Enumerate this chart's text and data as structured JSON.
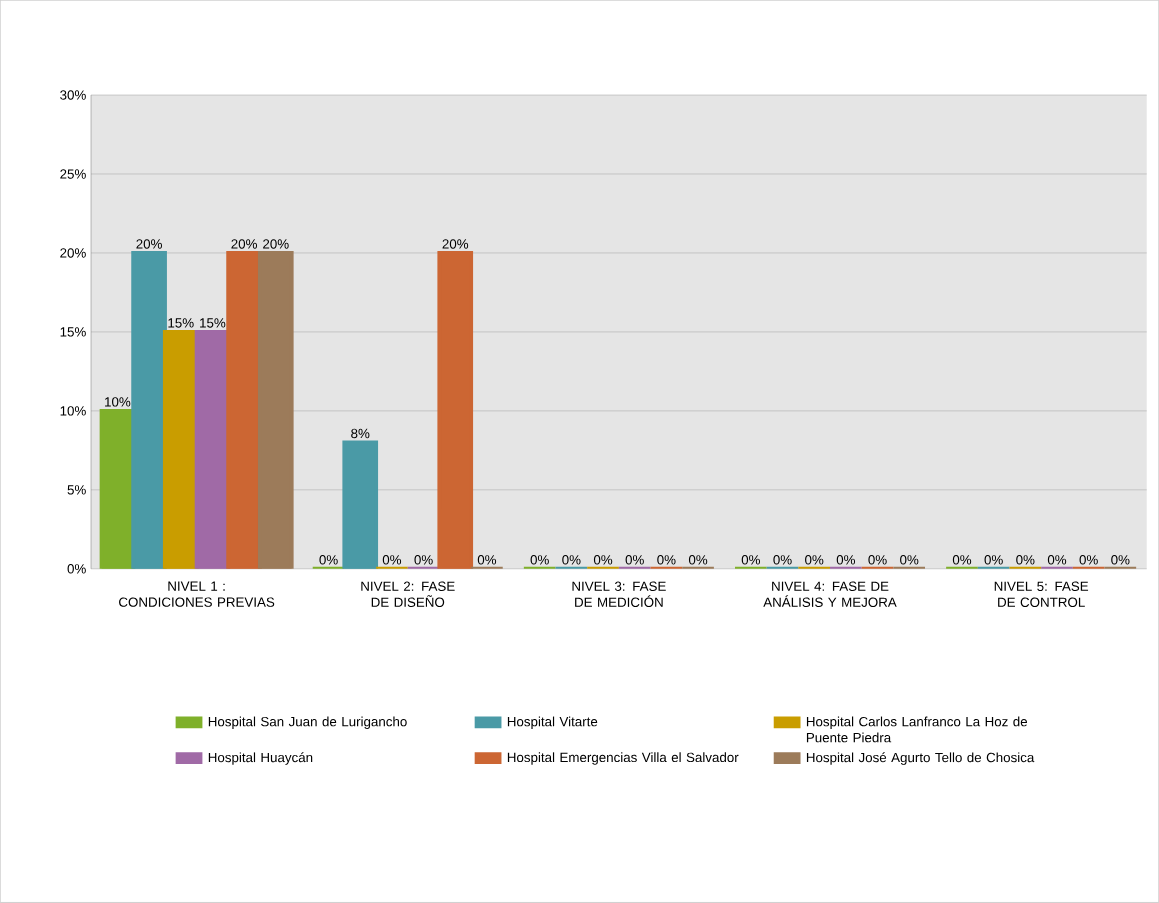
{
  "chart_data": {
    "type": "bar",
    "categories": [
      "NIVEL 1 : CONDICIONES PREVIAS",
      "NIVEL 2: FASE DE DISEÑO",
      "NIVEL 3: FASE DE MEDICIÓN",
      "NIVEL 4: FASE DE ANÁLISIS Y MEJORA",
      "NIVEL 5: FASE DE CONTROL"
    ],
    "series": [
      {
        "name": "Hospital San Juan de Lurigancho",
        "color": "#7fb02a",
        "values": [
          10,
          0,
          0,
          0,
          0
        ],
        "value_labels": [
          "10%",
          "0%",
          "0%",
          "0%",
          "0%"
        ]
      },
      {
        "name": "Hospital Vitarte",
        "color": "#4a9aa6",
        "values": [
          20,
          8,
          0,
          0,
          0
        ],
        "value_labels": [
          "20%",
          "8%",
          "0%",
          "0%",
          "0%"
        ]
      },
      {
        "name": "Hospital Carlos Lanfranco La Hoz de Puente Piedra",
        "color": "#c99d00",
        "values": [
          15,
          0,
          0,
          0,
          0
        ],
        "value_labels": [
          "15%",
          "0%",
          "0%",
          "0%",
          "0%"
        ]
      },
      {
        "name": "Hospital Huaycán",
        "color": "#a06aa6",
        "values": [
          15,
          0,
          0,
          0,
          0
        ],
        "value_labels": [
          "15%",
          "0%",
          "0%",
          "0%",
          "0%"
        ]
      },
      {
        "name": "Hospital Emergencias Villa el Salvador",
        "color": "#cc6633",
        "values": [
          20,
          20,
          0,
          0,
          0
        ],
        "value_labels": [
          "20%",
          "20%",
          "0%",
          "0%",
          "0%"
        ]
      },
      {
        "name": "Hospital José Agurto Tello de Chosica",
        "color": "#9c7b5a",
        "values": [
          20,
          0,
          0,
          0,
          0
        ],
        "value_labels": [
          "20%",
          "0%",
          "0%",
          "0%",
          "0%"
        ]
      }
    ],
    "ylim": [
      0,
      30
    ],
    "yticks": [
      {
        "value": 0,
        "label": "0%"
      },
      {
        "value": 5,
        "label": "5%"
      },
      {
        "value": 10,
        "label": "10%"
      },
      {
        "value": 15,
        "label": "15%"
      },
      {
        "value": 20,
        "label": "20%"
      },
      {
        "value": 25,
        "label": "25%"
      },
      {
        "value": 30,
        "label": "30%"
      }
    ],
    "grid": "y",
    "legend": "bottom"
  }
}
